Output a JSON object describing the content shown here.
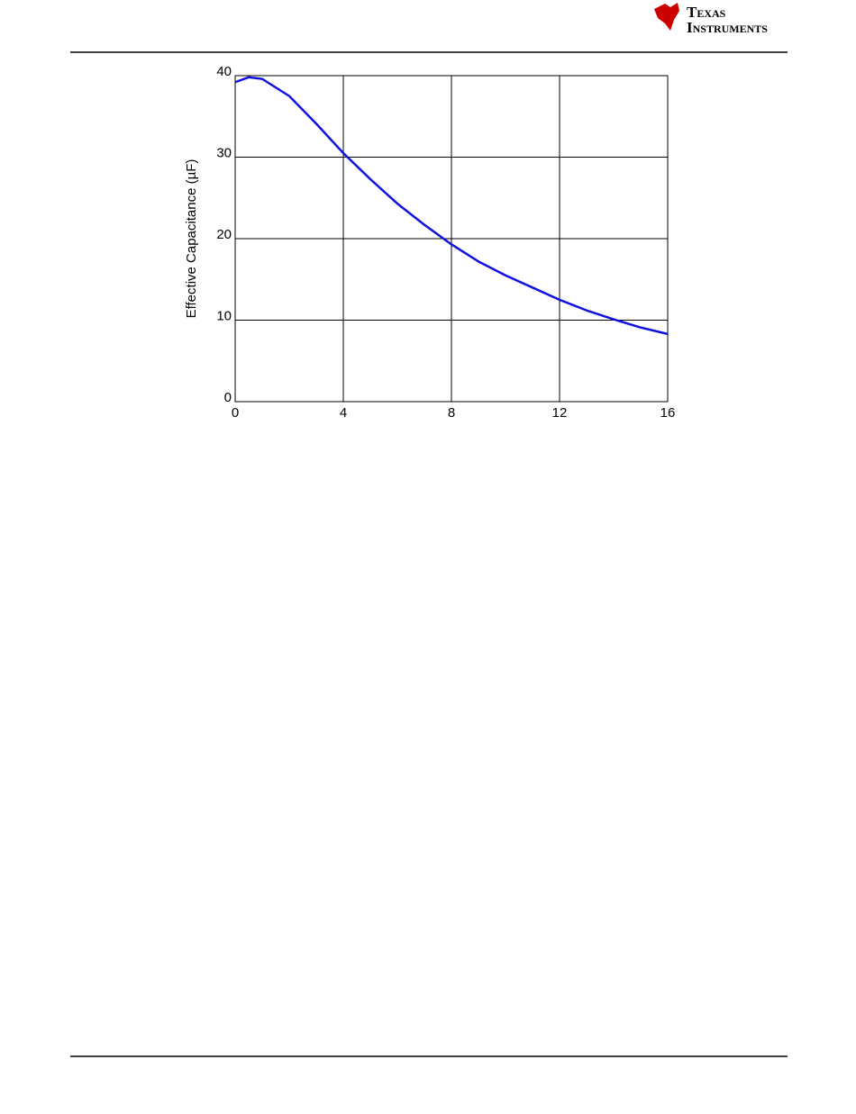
{
  "header": {
    "logo": [
      "Texas",
      "Instruments"
    ]
  },
  "chart_data": {
    "type": "line",
    "ylabel": "Effective Capacitance (µF)",
    "x": [
      0,
      0.5,
      1,
      2,
      3,
      4,
      5,
      6,
      7,
      8,
      9,
      10,
      11,
      12,
      13,
      14,
      15,
      16
    ],
    "series": [
      {
        "name": "Effective Capacitance",
        "color": "#1010e0",
        "values": [
          39.2,
          39.8,
          39.6,
          37.5,
          34.1,
          30.5,
          27.3,
          24.3,
          21.7,
          19.3,
          17.2,
          15.5,
          14.0,
          12.5,
          11.2,
          10.1,
          9.1,
          8.3
        ]
      }
    ],
    "xlim": [
      0,
      16
    ],
    "xticks": [
      0,
      4,
      8,
      12,
      16
    ],
    "ylim": [
      0,
      40
    ],
    "yticks": [
      0,
      10,
      20,
      30,
      40
    ],
    "grid": true
  }
}
